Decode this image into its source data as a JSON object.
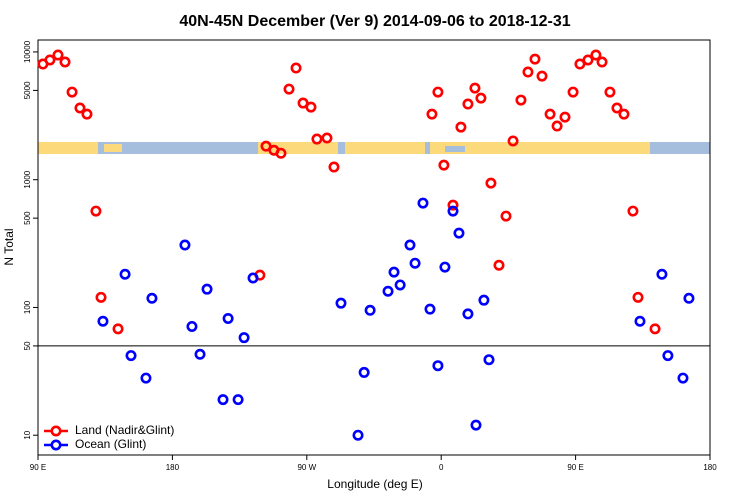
{
  "chart_data": {
    "type": "scatter",
    "title": "40N-45N December (Ver 9)   2014-09-06 to 2018-12-31",
    "xlabel": "Longitude (deg E)",
    "ylabel": "N Total",
    "xlim": [
      90,
      540
    ],
    "xticks": [
      {
        "value": 90,
        "label": "90 E"
      },
      180,
      {
        "value": 270,
        "label": "90 W"
      },
      {
        "value": 360,
        "label": "0"
      },
      {
        "value": 450,
        "label": "90 E"
      },
      {
        "value": 540,
        "label": "180"
      }
    ],
    "ylim": [
      7,
      12400
    ],
    "yscale": "log",
    "yticks": [
      10,
      50,
      100,
      500,
      1000,
      5000,
      10000
    ],
    "reference_line": 50,
    "legend": "bottom-left",
    "series": [
      {
        "name": "Land (Nadir&Glint)",
        "color": "#ff0000",
        "x": [
          93.3,
          98.0,
          103.4,
          108.1,
          112.8,
          118.1,
          122.8,
          128.8,
          132.2,
          143.6,
          238.6,
          242.7,
          248.0,
          252.7,
          258.1,
          262.8,
          267.5,
          272.8,
          276.8,
          283.5,
          288.2,
          353.8,
          357.8,
          361.8,
          367.9,
          373.2,
          377.9,
          382.6,
          386.6,
          393.3,
          398.7,
          403.4,
          408.1,
          413.4,
          418.1,
          422.8,
          427.5,
          432.9,
          437.6,
          442.9,
          448.3,
          452.9,
          458.3,
          463.6,
          467.7,
          473.0,
          477.7,
          482.4,
          488.4,
          491.8,
          503.2
        ],
        "values": [
          8040,
          8650,
          9460,
          8340,
          4850,
          3640,
          3260,
          568,
          120,
          68,
          179,
          1830,
          1700,
          1610,
          5120,
          7480,
          3980,
          3700,
          2080,
          2120,
          1256,
          3260,
          4850,
          1300,
          632,
          2580,
          3910,
          5210,
          4350,
          940,
          214,
          519,
          2010,
          4200,
          6960,
          8790,
          6470,
          3260,
          2630,
          3090,
          4850,
          8040,
          8650,
          9460,
          8340,
          4850,
          3640,
          3260,
          568,
          120,
          68
        ]
      },
      {
        "name": "Ocean (Glint)",
        "color": "#0000ff",
        "x": [
          133.5,
          148.3,
          152.3,
          162.3,
          166.3,
          188.4,
          193.1,
          198.5,
          203.2,
          213.9,
          217.3,
          224.0,
          228.0,
          234.0,
          292.9,
          304.3,
          308.4,
          312.4,
          324.4,
          328.4,
          332.5,
          339.1,
          342.5,
          347.8,
          352.5,
          357.8,
          362.5,
          367.9,
          371.9,
          377.9,
          383.3,
          388.6,
          392.0,
          493.1,
          507.8,
          511.8,
          521.9,
          525.9
        ],
        "values": [
          78,
          182,
          42,
          28,
          118,
          308,
          71,
          43,
          139,
          19,
          82,
          19,
          58,
          170,
          108,
          10,
          31,
          95,
          134,
          189,
          150,
          308,
          222,
          656,
          97,
          35,
          207,
          568,
          382,
          89,
          12,
          114,
          39,
          78,
          182,
          42,
          28,
          118
        ]
      }
    ]
  }
}
